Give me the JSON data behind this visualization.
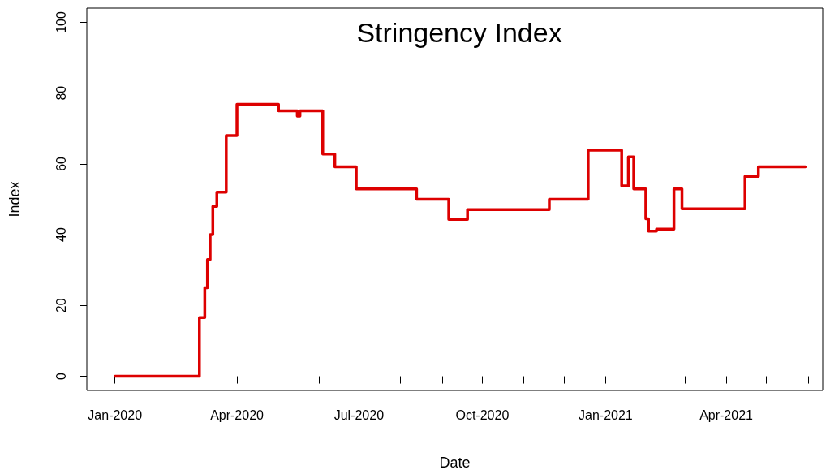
{
  "chart_data": {
    "type": "step",
    "title": "Stringency Index",
    "xlabel": "Date",
    "ylabel": "Index",
    "x": [
      "2020-01-01",
      "2020-03-04",
      "2020-03-08",
      "2020-03-10",
      "2020-03-12",
      "2020-03-14",
      "2020-03-17",
      "2020-03-24",
      "2020-04-01",
      "2020-05-02",
      "2020-05-16",
      "2020-05-18",
      "2020-06-04",
      "2020-06-13",
      "2020-06-29",
      "2020-08-13",
      "2020-09-06",
      "2020-09-20",
      "2020-11-20",
      "2020-12-19",
      "2021-01-13",
      "2021-01-18",
      "2021-01-22",
      "2021-01-31",
      "2021-02-02",
      "2021-02-08",
      "2021-02-21",
      "2021-02-27",
      "2021-04-15",
      "2021-04-25",
      "2021-05-30"
    ],
    "series": [
      {
        "color": "#dd0000",
        "values": [
          0,
          16.6,
          25,
          33,
          40,
          48,
          52,
          68,
          76.8,
          75,
          73.5,
          75,
          62.8,
          59.2,
          52.9,
          50,
          44.3,
          47.1,
          50,
          63.9,
          53.8,
          62,
          52.9,
          44.5,
          41,
          41.6,
          52.9,
          47.3,
          56.5,
          59.2,
          59.2
        ]
      }
    ],
    "xlim": [
      "2019-12-11",
      "2021-06-12"
    ],
    "xticks": [
      {
        "value": "2020-01-01",
        "label": "Jan-2020"
      },
      {
        "value": "2020-02-01",
        "label": null
      },
      {
        "value": "2020-03-01",
        "label": null
      },
      {
        "value": "2020-04-01",
        "label": "Apr-2020"
      },
      {
        "value": "2020-05-01",
        "label": null
      },
      {
        "value": "2020-06-01",
        "label": null
      },
      {
        "value": "2020-07-01",
        "label": "Jul-2020"
      },
      {
        "value": "2020-08-01",
        "label": null
      },
      {
        "value": "2020-09-01",
        "label": null
      },
      {
        "value": "2020-10-01",
        "label": "Oct-2020"
      },
      {
        "value": "2020-11-01",
        "label": null
      },
      {
        "value": "2020-12-01",
        "label": null
      },
      {
        "value": "2021-01-01",
        "label": "Jan-2021"
      },
      {
        "value": "2021-02-01",
        "label": null
      },
      {
        "value": "2021-03-01",
        "label": null
      },
      {
        "value": "2021-04-01",
        "label": "Apr-2021"
      },
      {
        "value": "2021-05-01",
        "label": null
      },
      {
        "value": "2021-06-01",
        "label": null
      }
    ],
    "ylim": [
      -4,
      104
    ],
    "yticks": [
      0,
      20,
      40,
      60,
      80,
      100
    ],
    "grid": false,
    "marker": "none",
    "line_style": "solid"
  }
}
